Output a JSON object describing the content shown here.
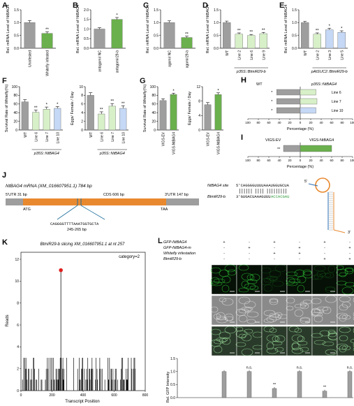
{
  "panels": {
    "A": {
      "letter": "A",
      "ylabel": "Rel. mRNA Level of NtBAG4",
      "bars": [
        {
          "label": "Uninfested",
          "value": 1.0,
          "err": 0.08,
          "sig": "",
          "color": "#9e9e9e"
        },
        {
          "label": "Whitefly infested",
          "value": 0.58,
          "err": 0.06,
          "sig": "**",
          "color": "#6ab04c"
        }
      ],
      "ylim": [
        0,
        1.5
      ],
      "ticks": [
        "0.0",
        "0.5",
        "1.0",
        "1.5"
      ]
    },
    "B": {
      "letter": "B",
      "ylabel": "Rel. mRNA Level of NtBAG4",
      "bars": [
        {
          "label": "antagomir NC",
          "value": 1.0,
          "err": 0.07,
          "sig": "",
          "color": "#9e9e9e"
        },
        {
          "label": "antagomir29-b",
          "value": 1.5,
          "err": 0.1,
          "sig": "*",
          "color": "#6ab04c"
        }
      ],
      "ylim": [
        0,
        2.0
      ],
      "ticks": [
        "0.0",
        "0.5",
        "1.0",
        "1.5",
        "2.0"
      ]
    },
    "C": {
      "letter": "C",
      "ylabel": "Rel. mRNA Level of NtBAG4",
      "bars": [
        {
          "label": "agomir NC",
          "value": 1.0,
          "err": 0.07,
          "sig": "",
          "color": "#9e9e9e"
        },
        {
          "label": "agomir29-b",
          "value": 0.42,
          "err": 0.05,
          "sig": "**",
          "color": "#6ab04c"
        }
      ],
      "ylim": [
        0,
        1.5
      ],
      "ticks": [
        "0.0",
        "0.5",
        "1.0",
        "1.5"
      ]
    },
    "D": {
      "letter": "D",
      "ylabel": "Rel. mRNA Level of NtBAG4",
      "group": "p35S::BtmiR29-b",
      "bars": [
        {
          "label": "WT",
          "value": 1.0,
          "err": 0.06,
          "sig": "",
          "color": "#9e9e9e"
        },
        {
          "label": "Line 2",
          "value": 0.55,
          "err": 0.05,
          "sig": "**",
          "color": "#d8f0c8"
        },
        {
          "label": "Line 6",
          "value": 0.5,
          "err": 0.04,
          "sig": "**",
          "color": "#d8f0c8"
        },
        {
          "label": "Line 9",
          "value": 0.57,
          "err": 0.05,
          "sig": "**",
          "color": "#d8f0c8"
        }
      ],
      "ylim": [
        0,
        1.5
      ],
      "ticks": [
        "0.0",
        "0.5",
        "1.0",
        "1.5"
      ]
    },
    "E": {
      "letter": "E",
      "ylabel": "Rel. mRNA Level of NtBAG4",
      "group": "pAtSUC2::BtmiR29-b",
      "bars": [
        {
          "label": "WT",
          "value": 1.0,
          "err": 0.05,
          "sig": "",
          "color": "#9e9e9e"
        },
        {
          "label": "Line 2",
          "value": 0.55,
          "err": 0.05,
          "sig": "**",
          "color": "#d8f0c8"
        },
        {
          "label": "Line 3",
          "value": 0.72,
          "err": 0.06,
          "sig": "*",
          "color": "#c5d8f5"
        },
        {
          "label": "Line 5",
          "value": 0.62,
          "err": 0.06,
          "sig": "*",
          "color": "#c5d8f5"
        }
      ],
      "ylim": [
        0,
        1.5
      ],
      "ticks": [
        "0.0",
        "0.5",
        "1.0",
        "1.5"
      ]
    },
    "F1": {
      "letter": "F",
      "ylabel": "Survival Rate of Whitefly(%)",
      "group": "p35S::NtBAG4",
      "bars": [
        {
          "label": "WT",
          "value": 65,
          "err": 5,
          "sig": "",
          "color": "#9e9e9e"
        },
        {
          "label": "Line 6",
          "value": 41,
          "err": 5,
          "sig": "**",
          "color": "#d8f0c8"
        },
        {
          "label": "Line 7",
          "value": 48,
          "err": 5,
          "sig": "*",
          "color": "#d8f0c8"
        },
        {
          "label": "Line 10",
          "value": 50,
          "err": 4,
          "sig": "*",
          "color": "#c5d8f5"
        }
      ],
      "ylim": [
        0,
        100
      ],
      "ticks": [
        "0",
        "20",
        "40",
        "60",
        "80",
        "100"
      ]
    },
    "F2": {
      "letter": "",
      "ylabel": "Eggs/ Female / Day",
      "group": "p35S::NtBAG4",
      "bars": [
        {
          "label": "WT",
          "value": 8.0,
          "err": 0.6,
          "sig": "",
          "color": "#9e9e9e"
        },
        {
          "label": "Line 6",
          "value": 3.7,
          "err": 0.5,
          "sig": "**",
          "color": "#d8f0c8"
        },
        {
          "label": "Line 7",
          "value": 5.5,
          "err": 0.6,
          "sig": "**",
          "color": "#d8f0c8"
        },
        {
          "label": "Line 10",
          "value": 5.0,
          "err": 0.6,
          "sig": "**",
          "color": "#c5d8f5"
        }
      ],
      "ylim": [
        0,
        10
      ],
      "ticks": [
        "0",
        "2",
        "4",
        "6",
        "8",
        "10"
      ]
    },
    "G1": {
      "letter": "G",
      "ylabel": "Survival Rate of Whitefly(%)",
      "bars": [
        {
          "label": "VIGS-EV",
          "value": 68,
          "err": 4,
          "sig": "",
          "color": "#9e9e9e"
        },
        {
          "label": "VIGS-NtBAG4",
          "value": 82,
          "err": 3,
          "sig": "*",
          "color": "#6ab04c"
        }
      ],
      "ylim": [
        0,
        100
      ],
      "ticks": [
        "0",
        "20",
        "40",
        "60",
        "80",
        "100"
      ]
    },
    "G2": {
      "letter": "",
      "ylabel": "Eggs/ Female / Day",
      "bars": [
        {
          "label": "VIGS-EV",
          "value": 7.0,
          "err": 0.6,
          "sig": "",
          "color": "#9e9e9e"
        },
        {
          "label": "VIGS-NtBAG4",
          "value": 9.8,
          "err": 0.5,
          "sig": "*",
          "color": "#6ab04c"
        }
      ],
      "ylim": [
        0,
        12
      ],
      "ticks": [
        "0",
        "4",
        "8",
        "12"
      ]
    }
  },
  "panelH": {
    "letter": "H",
    "left_label": "WT",
    "right_label": "p35S::NtBAG4",
    "xlabel": "Percentage (%)",
    "ticks": [
      "100",
      "80",
      "60",
      "40",
      "20",
      "0",
      "20",
      "40",
      "60",
      "80",
      "100"
    ],
    "rows": [
      {
        "label": "Line 6",
        "left": 45,
        "right": 30,
        "sig": "*",
        "color": "#d8f0c8"
      },
      {
        "label": "Line 7",
        "left": 45,
        "right": 32,
        "sig": "*",
        "color": "#d8f0c8"
      },
      {
        "label": "Line 10",
        "left": 45,
        "right": 30,
        "sig": "*",
        "color": "#c5d8f5"
      }
    ]
  },
  "panelI": {
    "letter": "I",
    "left_label": "VIGS-EV",
    "right_label": "VIGS-NtBAG4",
    "xlabel": "Percentage (%)",
    "ticks": [
      "100",
      "80",
      "60",
      "40",
      "20",
      "0",
      "20",
      "40",
      "60",
      "80",
      "100"
    ],
    "row": {
      "left": 32,
      "right": 60,
      "sig": "**",
      "color": "#6ab04c"
    }
  },
  "panelJ": {
    "letter": "J",
    "title": "NtBAG4 mRNA (XM_016607951.1) 784 bp",
    "utr5": "5'UTR 31 bp",
    "cds": "CDS 606 bp",
    "utr3": "3'UTR 147 bp",
    "atg": "ATG",
    "taa": "TAA",
    "site_seq": "CAGGGGTTTTAAATGGTGCTA",
    "site_pos": "245-265 bp",
    "site_label": "NtBAG4 site",
    "site_full": "5'CAGGGGUUUUAAAUGGUGCUA",
    "mir_label": "BtmiR29-b",
    "mir_a": "3'GUGACUAAAGUUU",
    "mir_b": "ACCACGAU",
    "end5": "5'",
    "end3": "3'"
  },
  "panelK": {
    "letter": "K",
    "title": "BtmiR29-b slicing XM_016607951.1 at nt 257",
    "category": "category=2",
    "ylabel": "Reads",
    "xlabel": "Transcript Position",
    "yticks": [
      "0",
      "2",
      "4",
      "6",
      "8",
      "10",
      "12"
    ],
    "xticks": [
      "0",
      "200",
      "400",
      "600",
      "800"
    ]
  },
  "panelL": {
    "letter": "L",
    "rows": [
      {
        "label": "GFP-NtBAG4",
        "vals": [
          "+",
          "-",
          "+",
          "-",
          "+",
          "-"
        ]
      },
      {
        "label": "GFP-NtBAG4-m",
        "vals": [
          "-",
          "+",
          "-",
          "+",
          "-",
          "+"
        ]
      },
      {
        "label": "Whitefly infestation",
        "vals": [
          "-",
          "-",
          "+",
          "+",
          "-",
          "-"
        ]
      },
      {
        "label": "BtmiR29-b",
        "vals": [
          "-",
          "-",
          "-",
          "-",
          "+",
          "+"
        ]
      }
    ],
    "ylabel": "Rel. GFP Intensity",
    "yticks": [
      "0.0",
      "0.5",
      "1.0",
      "1.5"
    ],
    "bars": [
      {
        "value": 1.0,
        "sig": ""
      },
      {
        "value": 1.0,
        "sig": "n.s."
      },
      {
        "value": 0.35,
        "sig": "**"
      },
      {
        "value": 1.0,
        "sig": "n.s."
      },
      {
        "value": 0.25,
        "sig": "**"
      },
      {
        "value": 1.0,
        "sig": "n.s."
      }
    ]
  },
  "chart_data": [
    {
      "type": "bar",
      "categories": [
        "Uninfested",
        "Whitefly infested"
      ],
      "values": [
        1.0,
        0.58
      ],
      "ylabel": "Rel. mRNA Level of NtBAG4",
      "ylim": [
        0,
        1.5
      ]
    },
    {
      "type": "bar",
      "categories": [
        "antagomir NC",
        "antagomir29-b"
      ],
      "values": [
        1.0,
        1.5
      ],
      "ylabel": "Rel. mRNA Level of NtBAG4",
      "ylim": [
        0,
        2.0
      ]
    },
    {
      "type": "bar",
      "categories": [
        "agomir NC",
        "agomir29-b"
      ],
      "values": [
        1.0,
        0.42
      ],
      "ylabel": "Rel. mRNA Level of NtBAG4",
      "ylim": [
        0,
        1.5
      ]
    },
    {
      "type": "bar",
      "categories": [
        "WT",
        "Line 2",
        "Line 6",
        "Line 9"
      ],
      "values": [
        1.0,
        0.55,
        0.5,
        0.57
      ],
      "ylabel": "Rel. mRNA Level of NtBAG4",
      "ylim": [
        0,
        1.5
      ]
    },
    {
      "type": "bar",
      "categories": [
        "WT",
        "Line 2",
        "Line 3",
        "Line 5"
      ],
      "values": [
        1.0,
        0.55,
        0.72,
        0.62
      ],
      "ylabel": "Rel. mRNA Level of NtBAG4",
      "ylim": [
        0,
        1.5
      ]
    },
    {
      "type": "bar",
      "categories": [
        "WT",
        "Line 6",
        "Line 7",
        "Line 10"
      ],
      "values": [
        65,
        41,
        48,
        50
      ],
      "ylabel": "Survival Rate of Whitefly(%)",
      "ylim": [
        0,
        100
      ]
    },
    {
      "type": "bar",
      "categories": [
        "WT",
        "Line 6",
        "Line 7",
        "Line 10"
      ],
      "values": [
        8.0,
        3.7,
        5.5,
        5.0
      ],
      "ylabel": "Eggs/ Female / Day",
      "ylim": [
        0,
        10
      ]
    },
    {
      "type": "bar",
      "categories": [
        "VIGS-EV",
        "VIGS-NtBAG4"
      ],
      "values": [
        68,
        82
      ],
      "ylabel": "Survival Rate of Whitefly(%)",
      "ylim": [
        0,
        100
      ]
    },
    {
      "type": "bar",
      "categories": [
        "VIGS-EV",
        "VIGS-NtBAG4"
      ],
      "values": [
        7.0,
        9.8
      ],
      "ylabel": "Eggs/ Female / Day",
      "ylim": [
        0,
        12
      ]
    },
    {
      "type": "bar",
      "title": "BtmiR29-b slicing XM_016607951.1 at nt 257",
      "xlabel": "Transcript Position",
      "ylabel": "Reads",
      "xlim": [
        0,
        800
      ],
      "ylim": [
        0,
        12
      ],
      "peak": {
        "x": 257,
        "y": 11
      }
    },
    {
      "type": "bar",
      "ylabel": "Rel. GFP Intensity",
      "categories": [
        "1",
        "2",
        "3",
        "4",
        "5",
        "6"
      ],
      "values": [
        1.0,
        1.0,
        0.35,
        1.0,
        0.25,
        1.0
      ],
      "ylim": [
        0,
        1.5
      ]
    }
  ]
}
